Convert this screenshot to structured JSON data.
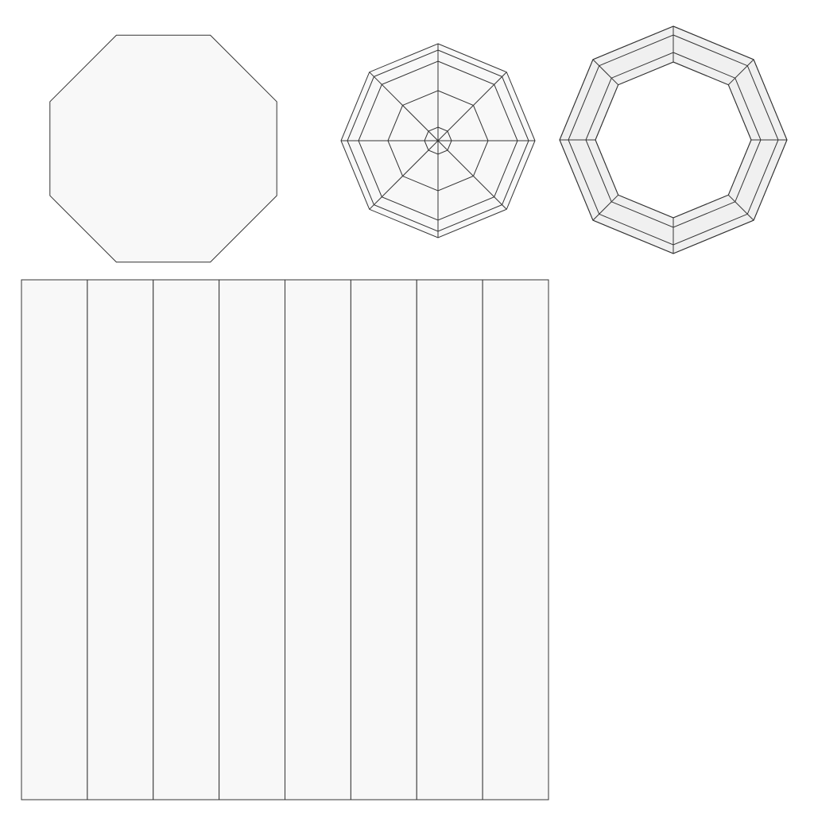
{
  "colors": {
    "background": "#ffffff",
    "stroke": "#333333",
    "face_fill": "#f8f8f8",
    "frame_fill": "#f0f0f0"
  },
  "shapes": [
    {
      "name": "flat-octagon",
      "kind": "octagon"
    },
    {
      "name": "octagon-radial-mesh",
      "kind": "radial mesh",
      "sides": 8,
      "segments": 8
    },
    {
      "name": "octagon-frame",
      "kind": "ring",
      "sides": 8,
      "segments": 8
    },
    {
      "name": "uv-strip-layout",
      "kind": "strips",
      "count": 8
    }
  ]
}
